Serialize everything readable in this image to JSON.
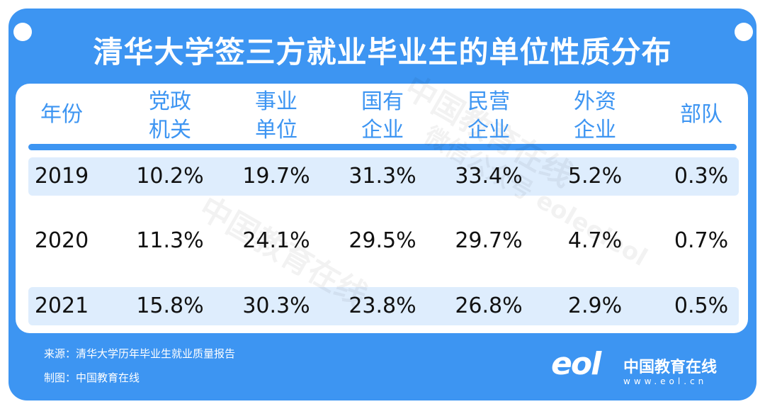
{
  "title": "清华大学签三方就业毕业生的单位性质分布",
  "table": {
    "header": [
      [
        "年份"
      ],
      [
        "党政",
        "机关"
      ],
      [
        "事业",
        "单位"
      ],
      [
        "国有",
        "企业"
      ],
      [
        "民营",
        "企业"
      ],
      [
        "外资",
        "企业"
      ],
      [
        "部队"
      ]
    ],
    "rows": [
      [
        "2019",
        "10.2%",
        "19.7%",
        "31.3%",
        "33.4%",
        "5.2%",
        "0.3%"
      ],
      [
        "2020",
        "11.3%",
        "24.1%",
        "29.5%",
        "29.7%",
        "4.7%",
        "0.7%"
      ],
      [
        "2021",
        "15.8%",
        "30.3%",
        "23.8%",
        "26.8%",
        "2.9%",
        "0.5%"
      ]
    ]
  },
  "footer": {
    "source": "来源：清华大学历年毕业生就业质量报告",
    "credit": "制图：中国教育在线"
  },
  "logo": {
    "mark": "eol",
    "name": "中国教育在线",
    "url": "www.eol.cn"
  },
  "watermark": [
    "中国教育在线",
    "微信公众号 eoleoleol"
  ]
}
